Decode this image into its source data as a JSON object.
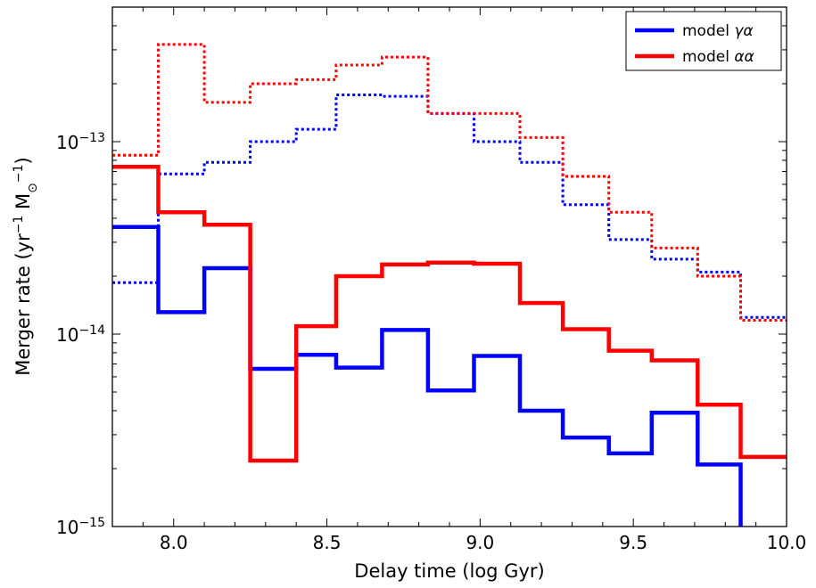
{
  "chart_data": {
    "type": "line",
    "step": true,
    "xlabel": "Delay time (log Gyr)",
    "ylabel_parts": [
      "Merger rate (yr",
      "−1",
      " M",
      "⊙",
      "−1",
      ")"
    ],
    "xlim": [
      7.8,
      10.0
    ],
    "ylim": [
      1e-15,
      5e-13
    ],
    "yscale": "log",
    "grid": false,
    "legend_position": "top-right",
    "x_ticks": [
      {
        "value": 8.0,
        "label": "8.0"
      },
      {
        "value": 8.5,
        "label": "8.5"
      },
      {
        "value": 9.0,
        "label": "9.0"
      },
      {
        "value": 9.5,
        "label": "9.5"
      },
      {
        "value": 10.0,
        "label": "10.0"
      }
    ],
    "y_ticks": [
      {
        "value": 1e-15,
        "base": "10",
        "exp": "−15"
      },
      {
        "value": 1e-14,
        "base": "10",
        "exp": "−14"
      },
      {
        "value": 1e-13,
        "base": "10",
        "exp": "−13"
      }
    ],
    "bin_edges": [
      7.8,
      7.95,
      8.1,
      8.25,
      8.4,
      8.53,
      8.68,
      8.83,
      8.98,
      9.13,
      9.27,
      9.42,
      9.56,
      9.71,
      9.85,
      10.0
    ],
    "legend": [
      {
        "label_prefix": "model ",
        "label_math": "γα",
        "color": "#0000ff"
      },
      {
        "label_prefix": "model ",
        "label_math": "αα",
        "color": "#ff0000"
      }
    ],
    "series": [
      {
        "model": "γα",
        "color": "#0000ff",
        "linestyle": "solid",
        "values": [
          3.6e-14,
          1.3e-14,
          2.2e-14,
          6.6e-15,
          7.8e-15,
          6.7e-15,
          1.05e-14,
          5.1e-15,
          7.7e-15,
          4e-15,
          2.9e-15,
          2.4e-15,
          3.9e-15,
          2.1e-15,
          9e-16
        ]
      },
      {
        "model": "αα",
        "color": "#ff0000",
        "linestyle": "solid",
        "values": [
          7.4e-14,
          4.3e-14,
          3.7e-14,
          2.2e-15,
          1.1e-14,
          2e-14,
          2.3e-14,
          2.35e-14,
          2.32e-14,
          1.45e-14,
          1.06e-14,
          8.2e-15,
          7.3e-15,
          4.3e-15,
          2.3e-15
        ]
      },
      {
        "model": "γα",
        "color": "#0000ff",
        "linestyle": "dotted",
        "values": [
          1.85e-14,
          6.8e-14,
          7.8e-14,
          1e-13,
          1.16e-13,
          1.75e-13,
          1.72e-13,
          1.4e-13,
          1e-13,
          7.8e-14,
          4.7e-14,
          3.1e-14,
          2.45e-14,
          2.1e-14,
          1.22e-14
        ]
      },
      {
        "model": "αα",
        "color": "#ff0000",
        "linestyle": "dotted",
        "values": [
          8.5e-14,
          3.2e-13,
          1.6e-13,
          2e-13,
          2.1e-13,
          2.5e-13,
          2.75e-13,
          1.4e-13,
          1.4e-13,
          1.05e-13,
          6.6e-14,
          4.3e-14,
          2.8e-14,
          2e-14,
          1.18e-14
        ]
      }
    ]
  }
}
